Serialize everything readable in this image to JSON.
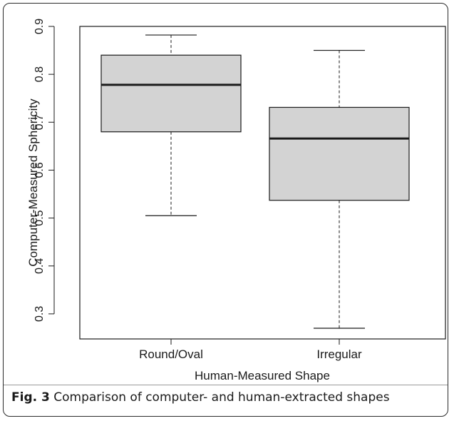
{
  "chart_data": {
    "type": "box",
    "categories": [
      "Round/Oval",
      "Irregular"
    ],
    "boxes": [
      {
        "name": "Round/Oval",
        "min": 0.505,
        "q1": 0.68,
        "median": 0.778,
        "q3": 0.84,
        "max": 0.882
      },
      {
        "name": "Irregular",
        "min": 0.27,
        "q1": 0.537,
        "median": 0.666,
        "q3": 0.731,
        "max": 0.85
      }
    ],
    "xlabel": "Human-Measured Shape",
    "ylabel": "Computer-Measured Sphericity",
    "ylim": [
      0.25,
      0.9
    ],
    "yticks": [
      0.3,
      0.4,
      0.5,
      0.6,
      0.7,
      0.8,
      0.9
    ],
    "ytick_labels": [
      "0.3",
      "0.4",
      "0.5",
      "0.6",
      "0.7",
      "0.8",
      "0.9"
    ],
    "colors": {
      "box_fill": "#d3d3d3",
      "line": "#1a1a1a"
    },
    "grid": false,
    "legend": "none"
  },
  "caption": {
    "label": "Fig. 3",
    "text": " Comparison of computer- and human-extracted shapes"
  }
}
